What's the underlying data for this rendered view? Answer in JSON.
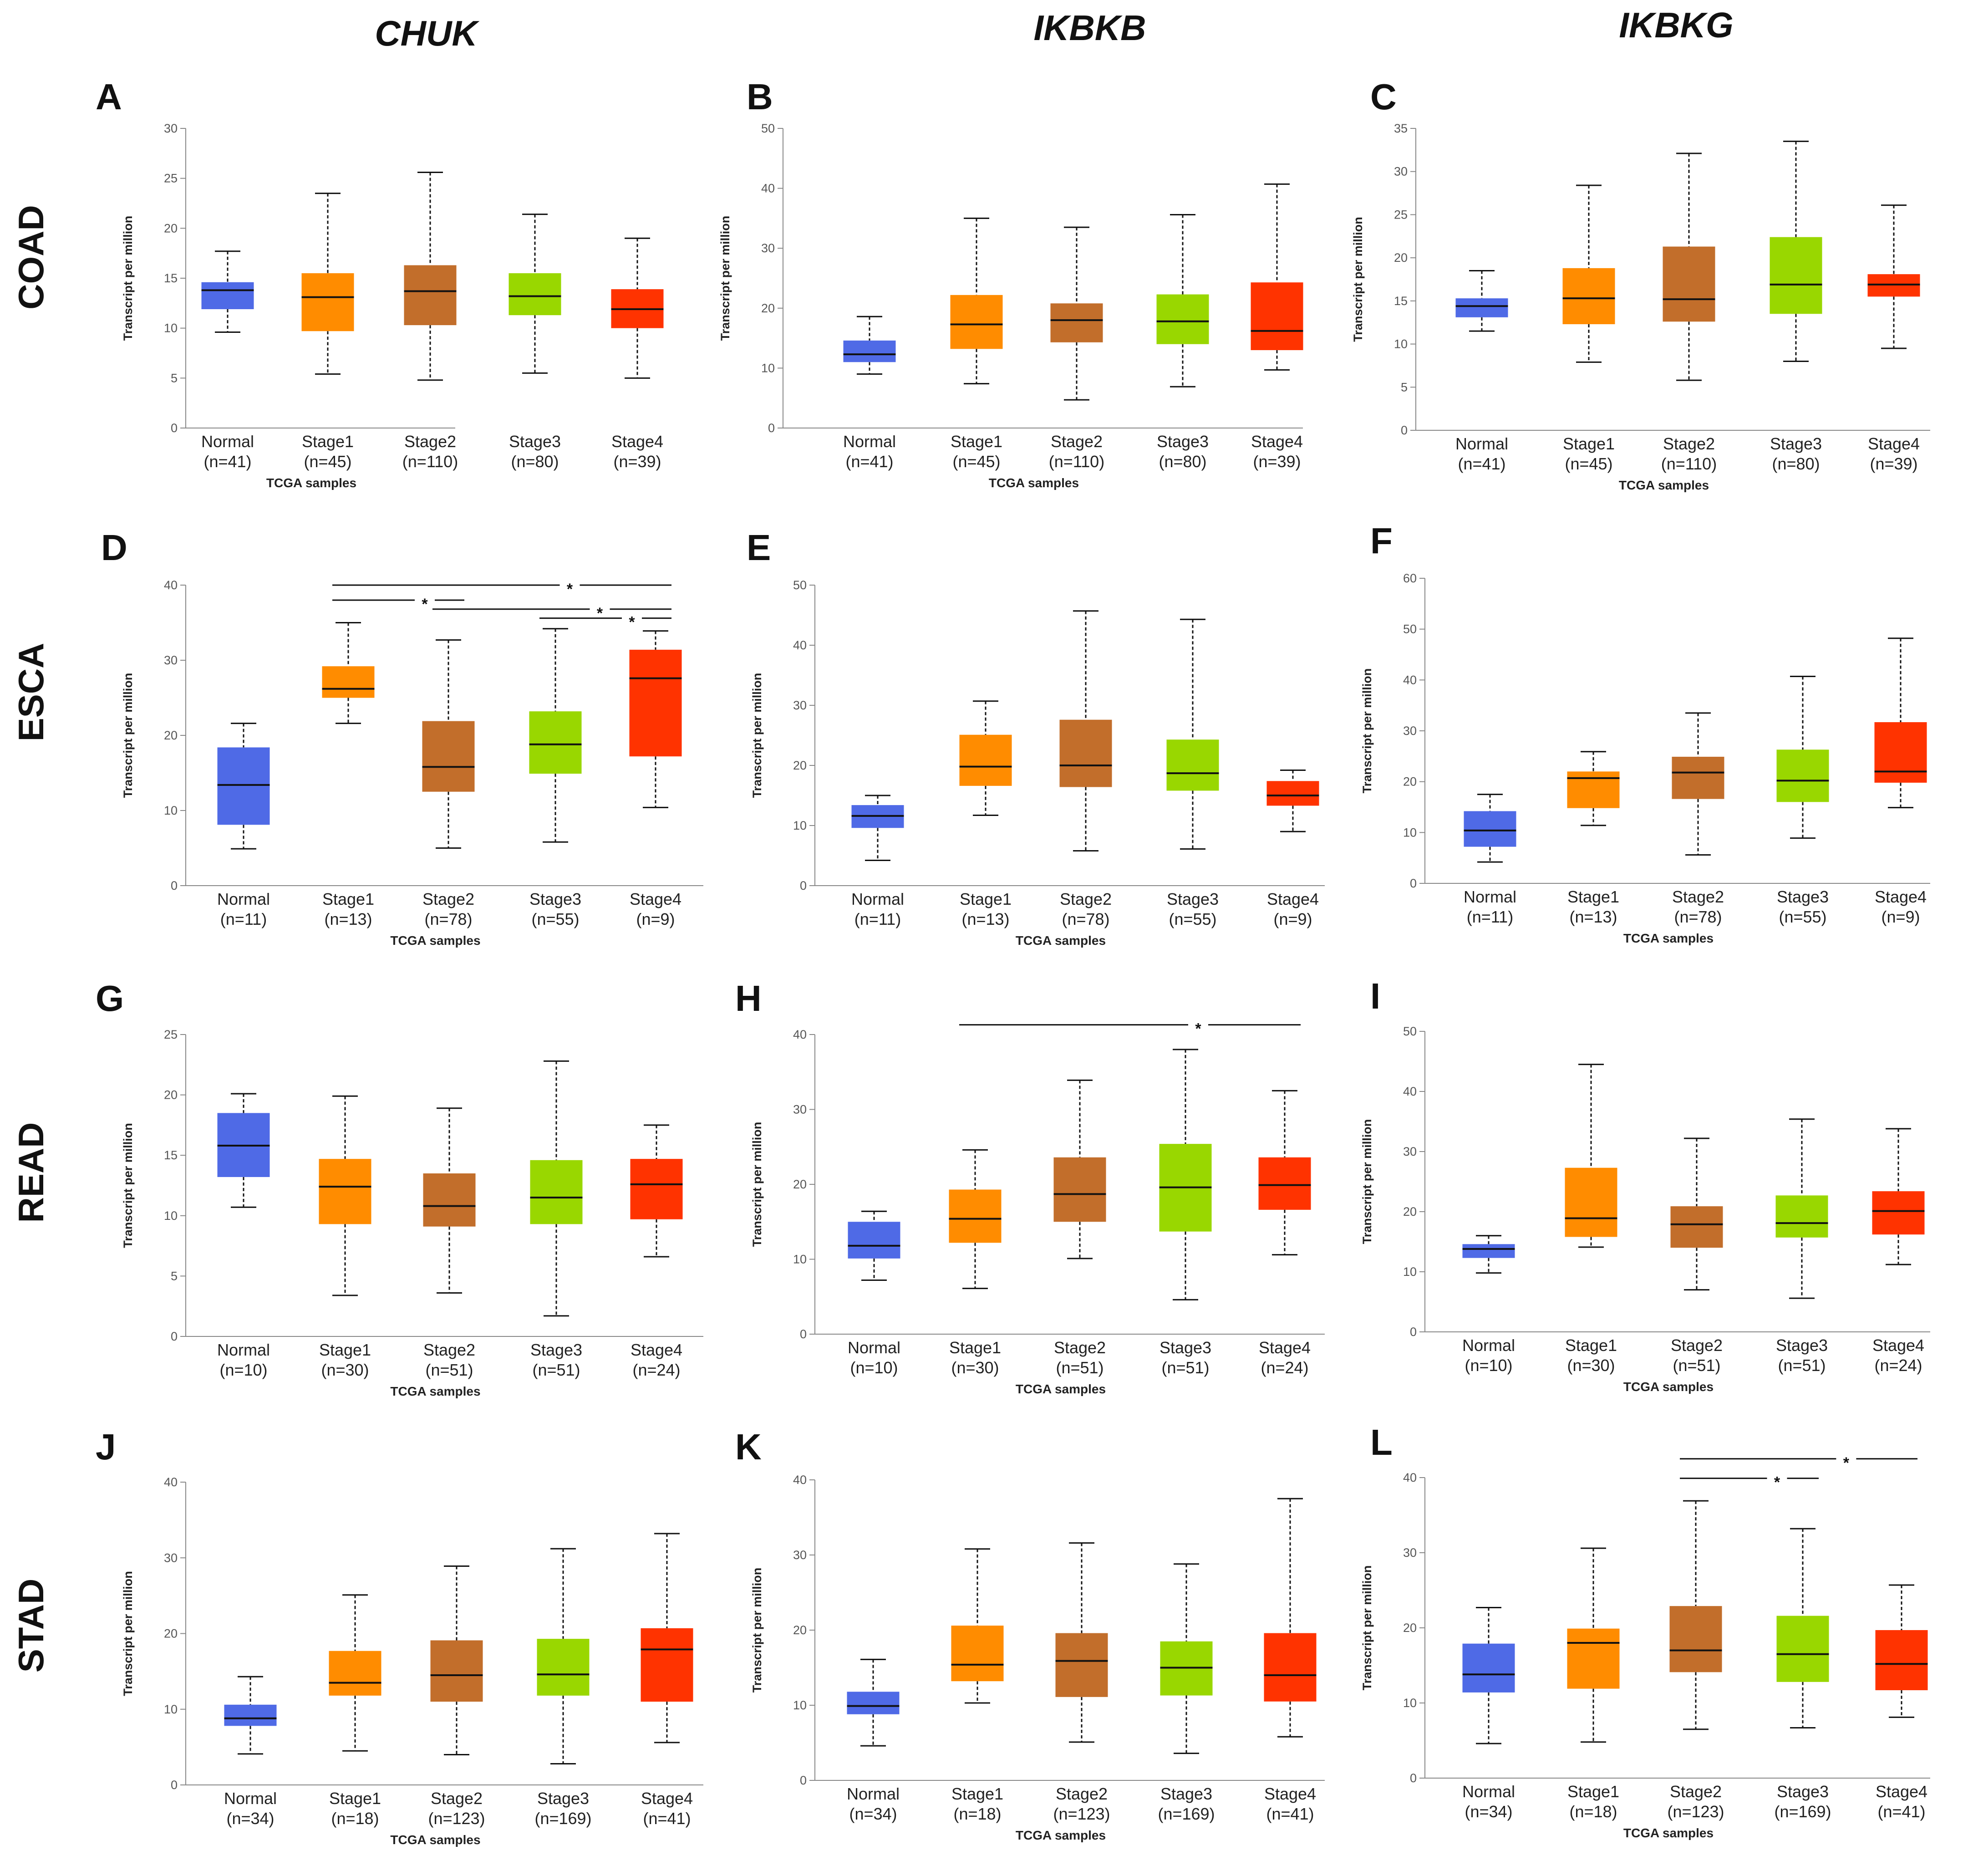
{
  "columns": [
    "CHUK",
    "IKBKB",
    "IKBKG"
  ],
  "rows": [
    "COAD",
    "ESCA",
    "READ",
    "STAD"
  ],
  "colors": {
    "Normal": "#4f6ae6",
    "Stage1": "#ff8c00",
    "Stage2": "#c26e2b",
    "Stage3": "#99d700",
    "Stage4": "#ff3300"
  },
  "chart_data": [
    {
      "panel": "A",
      "gene": "CHUK",
      "cancer": "COAD",
      "type": "box",
      "xlabel": "TCGA samples",
      "ylabel": "Transcript per million",
      "ylim": [
        0,
        30
      ],
      "yticks": [
        0,
        5,
        10,
        15,
        20,
        25,
        30
      ],
      "groups": [
        {
          "name": "Normal",
          "n": "(n=41)",
          "whisker_low": 9.6,
          "q1": 11.9,
          "median": 13.8,
          "q3": 14.6,
          "whisker_high": 17.7
        },
        {
          "name": "Stage1",
          "n": "(n=45)",
          "whisker_low": 5.4,
          "q1": 9.7,
          "median": 13.1,
          "q3": 15.5,
          "whisker_high": 23.5
        },
        {
          "name": "Stage2",
          "n": "(n=110)",
          "whisker_low": 4.8,
          "q1": 10.3,
          "median": 13.7,
          "q3": 16.3,
          "whisker_high": 25.6
        },
        {
          "name": "Stage3",
          "n": "(n=80)",
          "whisker_low": 5.5,
          "q1": 11.3,
          "median": 13.2,
          "q3": 15.5,
          "whisker_high": 21.4
        },
        {
          "name": "Stage4",
          "n": "(n=39)",
          "whisker_low": 5.0,
          "q1": 10.0,
          "median": 11.9,
          "q3": 13.9,
          "whisker_high": 19.0
        }
      ],
      "significance": []
    },
    {
      "panel": "B",
      "gene": "IKBKB",
      "cancer": "COAD",
      "type": "box",
      "xlabel": "TCGA samples",
      "ylabel": "Transcript per million",
      "ylim": [
        0,
        50
      ],
      "yticks": [
        0,
        10,
        20,
        30,
        40,
        50
      ],
      "groups": [
        {
          "name": "Normal",
          "n": "(n=41)",
          "whisker_low": 9.0,
          "q1": 11.0,
          "median": 12.3,
          "q3": 14.6,
          "whisker_high": 18.6
        },
        {
          "name": "Stage1",
          "n": "(n=45)",
          "whisker_low": 7.4,
          "q1": 13.2,
          "median": 17.3,
          "q3": 22.2,
          "whisker_high": 35.0
        },
        {
          "name": "Stage2",
          "n": "(n=110)",
          "whisker_low": 4.7,
          "q1": 14.3,
          "median": 18.0,
          "q3": 20.8,
          "whisker_high": 33.5
        },
        {
          "name": "Stage3",
          "n": "(n=80)",
          "whisker_low": 6.9,
          "q1": 14.0,
          "median": 17.8,
          "q3": 22.3,
          "whisker_high": 35.6
        },
        {
          "name": "Stage4",
          "n": "(n=39)",
          "whisker_low": 9.7,
          "q1": 13.0,
          "median": 16.2,
          "q3": 24.3,
          "whisker_high": 40.7
        }
      ],
      "significance": []
    },
    {
      "panel": "C",
      "gene": "IKBKG",
      "cancer": "COAD",
      "type": "box",
      "xlabel": "TCGA samples",
      "ylabel": "Transcript per million",
      "ylim": [
        0,
        35
      ],
      "yticks": [
        0,
        5,
        10,
        15,
        20,
        25,
        30,
        35
      ],
      "groups": [
        {
          "name": "Normal",
          "n": "(n=41)",
          "whisker_low": 11.5,
          "q1": 13.1,
          "median": 14.4,
          "q3": 15.3,
          "whisker_high": 18.5
        },
        {
          "name": "Stage1",
          "n": "(n=45)",
          "whisker_low": 7.9,
          "q1": 12.3,
          "median": 15.3,
          "q3": 18.8,
          "whisker_high": 28.4
        },
        {
          "name": "Stage2",
          "n": "(n=110)",
          "whisker_low": 5.8,
          "q1": 12.6,
          "median": 15.2,
          "q3": 21.3,
          "whisker_high": 32.1
        },
        {
          "name": "Stage3",
          "n": "(n=80)",
          "whisker_low": 8.0,
          "q1": 13.5,
          "median": 16.9,
          "q3": 22.4,
          "whisker_high": 33.5
        },
        {
          "name": "Stage4",
          "n": "(n=39)",
          "whisker_low": 9.5,
          "q1": 15.5,
          "median": 16.9,
          "q3": 18.1,
          "whisker_high": 26.1
        }
      ],
      "significance": []
    },
    {
      "panel": "D",
      "gene": "CHUK",
      "cancer": "ESCA",
      "type": "box",
      "xlabel": "TCGA samples",
      "ylabel": "Transcript per million",
      "ylim": [
        0,
        40
      ],
      "yticks": [
        0,
        10,
        20,
        30,
        40
      ],
      "groups": [
        {
          "name": "Normal",
          "n": "(n=11)",
          "whisker_low": 4.9,
          "q1": 8.1,
          "median": 13.4,
          "q3": 18.4,
          "whisker_high": 21.6
        },
        {
          "name": "Stage1",
          "n": "(n=13)",
          "whisker_low": 21.6,
          "q1": 25.0,
          "median": 26.2,
          "q3": 29.2,
          "whisker_high": 35.0
        },
        {
          "name": "Stage2",
          "n": "(n=78)",
          "whisker_low": 5.0,
          "q1": 12.5,
          "median": 15.8,
          "q3": 21.9,
          "whisker_high": 32.7
        },
        {
          "name": "Stage3",
          "n": "(n=55)",
          "whisker_low": 5.8,
          "q1": 14.9,
          "median": 18.8,
          "q3": 23.2,
          "whisker_high": 34.2
        },
        {
          "name": "Stage4",
          "n": "(n=9)",
          "whisker_low": 10.4,
          "q1": 17.2,
          "median": 27.6,
          "q3": 31.4,
          "whisker_high": 33.9
        }
      ],
      "significance": [
        {
          "from": "Stage1",
          "to": "Stage4",
          "label": "*",
          "level": 40.0
        },
        {
          "from": "Stage1",
          "to": "Stage2",
          "label": "*",
          "level": 38.0
        },
        {
          "from": "Stage2",
          "to": "Stage4",
          "label": "*",
          "level": 36.8
        },
        {
          "from": "Stage3",
          "to": "Stage4",
          "label": "*",
          "level": 35.6
        }
      ]
    },
    {
      "panel": "E",
      "gene": "IKBKB",
      "cancer": "ESCA",
      "type": "box",
      "xlabel": "TCGA samples",
      "ylabel": "Transcript per million",
      "ylim": [
        0,
        50
      ],
      "yticks": [
        0,
        10,
        20,
        30,
        40,
        50
      ],
      "groups": [
        {
          "name": "Normal",
          "n": "(n=11)",
          "whisker_low": 4.2,
          "q1": 9.6,
          "median": 11.6,
          "q3": 13.4,
          "whisker_high": 15.0
        },
        {
          "name": "Stage1",
          "n": "(n=13)",
          "whisker_low": 11.7,
          "q1": 16.6,
          "median": 19.8,
          "q3": 25.1,
          "whisker_high": 30.7
        },
        {
          "name": "Stage2",
          "n": "(n=78)",
          "whisker_low": 5.8,
          "q1": 16.4,
          "median": 20.0,
          "q3": 27.6,
          "whisker_high": 45.7
        },
        {
          "name": "Stage3",
          "n": "(n=55)",
          "whisker_low": 6.1,
          "q1": 15.8,
          "median": 18.7,
          "q3": 24.3,
          "whisker_high": 44.3
        },
        {
          "name": "Stage4",
          "n": "(n=9)",
          "whisker_low": 9.0,
          "q1": 13.3,
          "median": 15.0,
          "q3": 17.4,
          "whisker_high": 19.2
        }
      ],
      "significance": []
    },
    {
      "panel": "F",
      "gene": "IKBKG",
      "cancer": "ESCA",
      "type": "box",
      "xlabel": "TCGA samples",
      "ylabel": "Transcript per million",
      "ylim": [
        0,
        60
      ],
      "yticks": [
        0,
        10,
        20,
        30,
        40,
        50,
        60
      ],
      "groups": [
        {
          "name": "Normal",
          "n": "(n=11)",
          "whisker_low": 4.2,
          "q1": 7.2,
          "median": 10.4,
          "q3": 14.2,
          "whisker_high": 17.5
        },
        {
          "name": "Stage1",
          "n": "(n=13)",
          "whisker_low": 11.4,
          "q1": 14.8,
          "median": 20.7,
          "q3": 22.0,
          "whisker_high": 25.9
        },
        {
          "name": "Stage2",
          "n": "(n=78)",
          "whisker_low": 5.6,
          "q1": 16.6,
          "median": 21.8,
          "q3": 24.9,
          "whisker_high": 33.5
        },
        {
          "name": "Stage3",
          "n": "(n=55)",
          "whisker_low": 8.9,
          "q1": 16.0,
          "median": 20.2,
          "q3": 26.3,
          "whisker_high": 40.7
        },
        {
          "name": "Stage4",
          "n": "(n=9)",
          "whisker_low": 14.9,
          "q1": 19.8,
          "median": 22.0,
          "q3": 31.7,
          "whisker_high": 48.2
        }
      ],
      "significance": []
    },
    {
      "panel": "G",
      "gene": "CHUK",
      "cancer": "READ",
      "type": "box",
      "xlabel": "TCGA samples",
      "ylabel": "Transcript per million",
      "ylim": [
        0,
        25
      ],
      "yticks": [
        0,
        5,
        10,
        15,
        20,
        25
      ],
      "groups": [
        {
          "name": "Normal",
          "n": "(n=10)",
          "whisker_low": 10.7,
          "q1": 13.2,
          "median": 15.8,
          "q3": 18.5,
          "whisker_high": 20.1
        },
        {
          "name": "Stage1",
          "n": "(n=30)",
          "whisker_low": 3.4,
          "q1": 9.3,
          "median": 12.4,
          "q3": 14.7,
          "whisker_high": 19.9
        },
        {
          "name": "Stage2",
          "n": "(n=51)",
          "whisker_low": 3.6,
          "q1": 9.1,
          "median": 10.8,
          "q3": 13.5,
          "whisker_high": 18.9
        },
        {
          "name": "Stage3",
          "n": "(n=51)",
          "whisker_low": 1.7,
          "q1": 9.3,
          "median": 11.5,
          "q3": 14.6,
          "whisker_high": 22.8
        },
        {
          "name": "Stage4",
          "n": "(n=24)",
          "whisker_low": 6.6,
          "q1": 9.7,
          "median": 12.6,
          "q3": 14.7,
          "whisker_high": 17.5
        }
      ],
      "significance": []
    },
    {
      "panel": "H",
      "gene": "IKBKB",
      "cancer": "READ",
      "type": "box",
      "xlabel": "TCGA samples",
      "ylabel": "Transcript per million",
      "ylim": [
        0,
        40
      ],
      "yticks": [
        0,
        10,
        20,
        30,
        40
      ],
      "groups": [
        {
          "name": "Normal",
          "n": "(n=10)",
          "whisker_low": 7.2,
          "q1": 10.1,
          "median": 11.8,
          "q3": 15.0,
          "whisker_high": 16.4
        },
        {
          "name": "Stage1",
          "n": "(n=30)",
          "whisker_low": 6.1,
          "q1": 12.2,
          "median": 15.4,
          "q3": 19.3,
          "whisker_high": 24.6
        },
        {
          "name": "Stage2",
          "n": "(n=51)",
          "whisker_low": 10.1,
          "q1": 15.0,
          "median": 18.7,
          "q3": 23.6,
          "whisker_high": 33.9
        },
        {
          "name": "Stage3",
          "n": "(n=51)",
          "whisker_low": 4.6,
          "q1": 13.7,
          "median": 19.6,
          "q3": 25.4,
          "whisker_high": 38.0
        },
        {
          "name": "Stage4",
          "n": "(n=24)",
          "whisker_low": 10.6,
          "q1": 16.6,
          "median": 19.9,
          "q3": 23.6,
          "whisker_high": 32.5
        }
      ],
      "significance": [
        {
          "from": "Stage1",
          "to": "Stage4",
          "label": "*",
          "level": 41.3
        }
      ]
    },
    {
      "panel": "I",
      "gene": "IKBKG",
      "cancer": "READ",
      "type": "box",
      "xlabel": "TCGA samples",
      "ylabel": "Transcript per million",
      "ylim": [
        0,
        50
      ],
      "yticks": [
        0,
        10,
        20,
        30,
        40,
        50
      ],
      "groups": [
        {
          "name": "Normal",
          "n": "(n=10)",
          "whisker_low": 9.8,
          "q1": 12.3,
          "median": 13.8,
          "q3": 14.6,
          "whisker_high": 16.0
        },
        {
          "name": "Stage1",
          "n": "(n=30)",
          "whisker_low": 14.1,
          "q1": 15.8,
          "median": 18.9,
          "q3": 27.3,
          "whisker_high": 44.5
        },
        {
          "name": "Stage2",
          "n": "(n=51)",
          "whisker_low": 7.0,
          "q1": 14.0,
          "median": 17.9,
          "q3": 20.9,
          "whisker_high": 32.2
        },
        {
          "name": "Stage3",
          "n": "(n=51)",
          "whisker_low": 5.6,
          "q1": 15.7,
          "median": 18.1,
          "q3": 22.7,
          "whisker_high": 35.4
        },
        {
          "name": "Stage4",
          "n": "(n=24)",
          "whisker_low": 11.2,
          "q1": 16.2,
          "median": 20.1,
          "q3": 23.4,
          "whisker_high": 33.8
        }
      ],
      "significance": []
    },
    {
      "panel": "J",
      "gene": "CHUK",
      "cancer": "STAD",
      "type": "box",
      "xlabel": "TCGA samples",
      "ylabel": "Transcript per million",
      "ylim": [
        0,
        40
      ],
      "yticks": [
        0,
        10,
        20,
        30,
        40
      ],
      "groups": [
        {
          "name": "Normal",
          "n": "(n=34)",
          "whisker_low": 4.1,
          "q1": 7.8,
          "median": 8.8,
          "q3": 10.6,
          "whisker_high": 14.3
        },
        {
          "name": "Stage1",
          "n": "(n=18)",
          "whisker_low": 4.5,
          "q1": 11.8,
          "median": 13.5,
          "q3": 17.7,
          "whisker_high": 25.1
        },
        {
          "name": "Stage2",
          "n": "(n=123)",
          "whisker_low": 4.0,
          "q1": 11.0,
          "median": 14.5,
          "q3": 19.1,
          "whisker_high": 28.9
        },
        {
          "name": "Stage3",
          "n": "(n=169)",
          "whisker_low": 2.8,
          "q1": 11.8,
          "median": 14.6,
          "q3": 19.3,
          "whisker_high": 31.2
        },
        {
          "name": "Stage4",
          "n": "(n=41)",
          "whisker_low": 5.6,
          "q1": 11.0,
          "median": 17.9,
          "q3": 20.7,
          "whisker_high": 33.2
        }
      ],
      "significance": []
    },
    {
      "panel": "K",
      "gene": "IKBKB",
      "cancer": "STAD",
      "type": "box",
      "xlabel": "TCGA samples",
      "ylabel": "Transcript per million",
      "ylim": [
        0,
        40
      ],
      "yticks": [
        0,
        10,
        20,
        30,
        40
      ],
      "groups": [
        {
          "name": "Normal",
          "n": "(n=34)",
          "whisker_low": 4.6,
          "q1": 8.8,
          "median": 9.9,
          "q3": 11.8,
          "whisker_high": 16.1
        },
        {
          "name": "Stage1",
          "n": "(n=18)",
          "whisker_low": 10.3,
          "q1": 13.2,
          "median": 15.4,
          "q3": 20.6,
          "whisker_high": 30.8
        },
        {
          "name": "Stage2",
          "n": "(n=123)",
          "whisker_low": 5.1,
          "q1": 11.1,
          "median": 15.9,
          "q3": 19.6,
          "whisker_high": 31.6
        },
        {
          "name": "Stage3",
          "n": "(n=169)",
          "whisker_low": 3.6,
          "q1": 11.3,
          "median": 15.0,
          "q3": 18.5,
          "whisker_high": 28.8
        },
        {
          "name": "Stage4",
          "n": "(n=41)",
          "whisker_low": 5.8,
          "q1": 10.5,
          "median": 14.0,
          "q3": 19.6,
          "whisker_high": 37.5
        }
      ],
      "significance": []
    },
    {
      "panel": "L",
      "gene": "IKBKG",
      "cancer": "STAD",
      "type": "box",
      "xlabel": "TCGA samples",
      "ylabel": "Transcript per million",
      "ylim": [
        0,
        40
      ],
      "yticks": [
        0,
        10,
        20,
        30,
        40
      ],
      "groups": [
        {
          "name": "Normal",
          "n": "(n=34)",
          "whisker_low": 4.6,
          "q1": 11.4,
          "median": 13.8,
          "q3": 17.9,
          "whisker_high": 22.7
        },
        {
          "name": "Stage1",
          "n": "(n=18)",
          "whisker_low": 4.8,
          "q1": 11.9,
          "median": 18.0,
          "q3": 19.9,
          "whisker_high": 30.6
        },
        {
          "name": "Stage2",
          "n": "(n=123)",
          "whisker_low": 6.5,
          "q1": 14.1,
          "median": 17.0,
          "q3": 22.9,
          "whisker_high": 36.9
        },
        {
          "name": "Stage3",
          "n": "(n=169)",
          "whisker_low": 6.7,
          "q1": 12.8,
          "median": 16.5,
          "q3": 21.6,
          "whisker_high": 33.2
        },
        {
          "name": "Stage4",
          "n": "(n=41)",
          "whisker_low": 8.1,
          "q1": 11.7,
          "median": 15.2,
          "q3": 19.7,
          "whisker_high": 25.7
        }
      ],
      "significance": [
        {
          "from": "Stage2",
          "to": "Stage4",
          "label": "*",
          "level": 42.5
        },
        {
          "from": "Stage2",
          "to": "Stage3",
          "label": "*",
          "level": 39.9
        }
      ]
    }
  ]
}
